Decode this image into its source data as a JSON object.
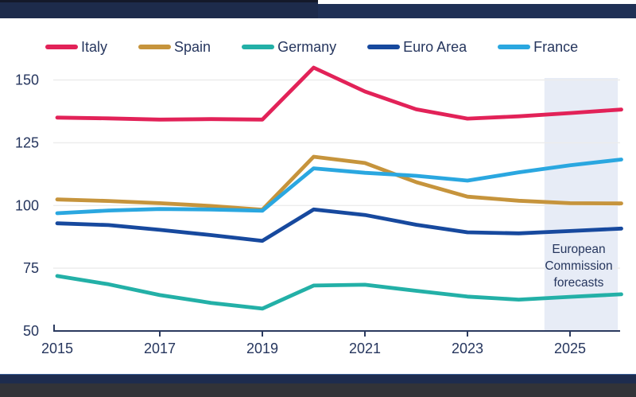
{
  "theme": {
    "background": "#ffffff",
    "top_bar_navy": "#1f3055",
    "top_bar_left_navy": "#1d2b4b",
    "top_bar_left_edge": "#14192a",
    "bottom_bar_navy": "#1e2c4e",
    "bottom_bar_highlight": "#3a5d96",
    "bottom_strip_charcoal": "#323338",
    "text_navy": "#26365e",
    "gridline": "#ececec",
    "axis": "#2b3a5f"
  },
  "chart_data": {
    "type": "line",
    "title": "",
    "xlabel": "",
    "ylabel": "",
    "grid": "horizontal",
    "legend_position": "top",
    "x": [
      2015,
      2016,
      2017,
      2018,
      2019,
      2020,
      2021,
      2022,
      2023,
      2024,
      2025,
      2026
    ],
    "series": [
      {
        "name": "Italy",
        "color": "#e22258",
        "values": [
          135.0,
          134.7,
          134.2,
          134.4,
          134.2,
          154.9,
          145.4,
          138.3,
          134.6,
          135.5,
          136.8,
          138.2
        ]
      },
      {
        "name": "Spain",
        "color": "#c6943c",
        "values": [
          102.4,
          101.8,
          100.9,
          99.8,
          98.3,
          119.4,
          116.9,
          109.3,
          103.5,
          101.9,
          100.9,
          100.8
        ]
      },
      {
        "name": "Germany",
        "color": "#23b0a7",
        "values": [
          71.9,
          68.6,
          64.3,
          61.2,
          58.9,
          68.1,
          68.4,
          66.0,
          63.7,
          62.5,
          63.6,
          64.6
        ]
      },
      {
        "name": "Euro Area",
        "color": "#17499e",
        "values": [
          92.9,
          92.2,
          90.3,
          88.2,
          85.9,
          98.4,
          96.2,
          92.3,
          89.3,
          88.9,
          89.8,
          90.8
        ]
      },
      {
        "name": "France",
        "color": "#2aa7e0",
        "values": [
          96.9,
          98.0,
          98.6,
          98.4,
          97.9,
          114.8,
          113.0,
          111.8,
          109.9,
          113.2,
          116.0,
          118.3
        ]
      }
    ],
    "yticks": [
      50,
      75,
      100,
      125,
      150
    ],
    "xticks": [
      2015,
      2017,
      2019,
      2021,
      2023,
      2025
    ],
    "ylim": [
      50,
      156
    ],
    "xlim": [
      2015,
      2026
    ],
    "forecast_band": {
      "start_year": 2024.5,
      "end_year": 2026,
      "color": "#e7ecf6",
      "label_lines": [
        "European",
        "Commission",
        "forecasts"
      ]
    }
  }
}
